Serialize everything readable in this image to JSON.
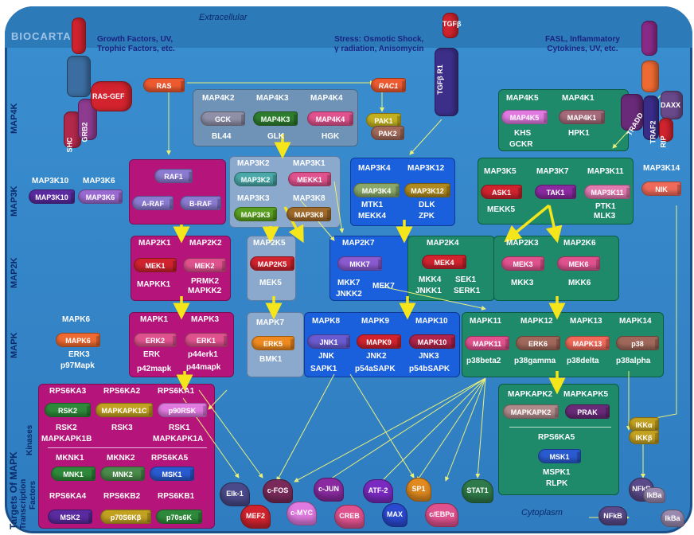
{
  "header": {
    "logo": "BIOCARTA",
    "extracellular": "Extracellular",
    "cytoplasm": "Cytoplasm",
    "stimuli": [
      {
        "line1": "Growth Factors, UV,",
        "line2": "Trophic Factors, etc."
      },
      {
        "line1": "Stress: Osmotic Shock,",
        "line2": "γ radiation, Anisomycin"
      },
      {
        "line1": "FASL, Inflammatory",
        "line2": "Cytokines, UV, etc."
      }
    ]
  },
  "side_labels": {
    "map4k": "MAP4K",
    "map3k": "MAP3K",
    "map2k": "MAP2K",
    "mapk": "MAPK",
    "targets_line1": "Targets Of MAPK",
    "targets_line2": "Transcription",
    "targets_line3": "Factors",
    "targets_kinases": "Kinases"
  },
  "receptors": {
    "shc": "SHC",
    "grb2": "GRB2",
    "rasgef": "RAS-GEF",
    "ras": "RAS",
    "rac1": "RAC1",
    "tgfb": "TGFβ",
    "tgfbr1": "TGFβ R1",
    "tradd": "TRADD",
    "traf2": "TRAF2",
    "daxx": "DAXX",
    "rip": "RIP"
  },
  "map4k_center": {
    "headers": [
      "MAP4K2",
      "MAP4K3",
      "MAP4K4"
    ],
    "pills": [
      "GCK",
      "MAP4K3",
      "MAP4K4"
    ],
    "aliases": [
      "BL44",
      "GLK",
      "HGK"
    ]
  },
  "pak": {
    "pak1": "PAK1",
    "pak2": "PAK2"
  },
  "map4k_right": {
    "headers": [
      "MAP4K5",
      "MAP4K1"
    ],
    "pills": [
      "MAP4K5",
      "MAP4K1"
    ],
    "aliases": [
      "KHS",
      "HPK1",
      "GCKR"
    ]
  },
  "map3k_left": {
    "headers": [
      "MAP3K10",
      "MAP3K6"
    ],
    "pills": [
      "MAP3K10",
      "MAP3K6"
    ]
  },
  "raf": {
    "raf1": "RAF1",
    "araf": "A-RAF",
    "braf": "B-RAF"
  },
  "map3k_grey": {
    "headers": [
      "MAP3K2",
      "MAP3K1",
      "MAP3K3",
      "MAP3K8"
    ],
    "pills": [
      "MAP3K2",
      "MEKK1",
      "MAP3K3",
      "MAP3K8"
    ]
  },
  "map3k_blue": {
    "headers": [
      "MAP3K4",
      "MAP3K12"
    ],
    "pills": [
      "MAP3K4",
      "MAP3K12"
    ],
    "aliases": [
      "MTK1",
      "DLK",
      "MEKK4",
      "ZPK"
    ]
  },
  "map3k_green": {
    "headers": [
      "MAP3K5",
      "MAP3K7",
      "MAP3K11"
    ],
    "pills": [
      "ASK1",
      "TAK1",
      "MAP3K11"
    ],
    "aliases": [
      "MEKK5",
      "PTK1",
      "MLK3"
    ]
  },
  "map3k14": {
    "header": "MAP3K14",
    "pill": "NIK"
  },
  "map2k_mag": {
    "headers": [
      "MAP2K1",
      "MAP2K2"
    ],
    "pills": [
      "MEK1",
      "MEK2"
    ],
    "aliases": [
      "MAPKK1",
      "PRMK2",
      "MAPKK2"
    ]
  },
  "map2k5": {
    "header": "MAP2K5",
    "pill": "MAP2K5",
    "alias": "MEK5"
  },
  "map2k_blue": {
    "header": "MAP2K7",
    "pill": "MKK7",
    "aliases": [
      "MKK7",
      "JNKK2",
      "MEK7"
    ]
  },
  "map2k4": {
    "header": "MAP2K4",
    "pill": "MEK4",
    "aliases": [
      "MKK4",
      "SEK1",
      "JNKK1",
      "SERK1"
    ]
  },
  "map2k_green": {
    "headers": [
      "MAP2K3",
      "MAP2K6"
    ],
    "pills": [
      "MEK3",
      "MEK6"
    ],
    "aliases": [
      "MKK3",
      "MKK6"
    ]
  },
  "mapk6": {
    "header": "MAPK6",
    "pill": "MAPK6",
    "aliases": [
      "ERK3",
      "p97Mapk"
    ]
  },
  "mapk_mag": {
    "headers": [
      "MAPK1",
      "MAPK3"
    ],
    "pills": [
      "ERK2",
      "ERK1"
    ],
    "aliases": [
      "ERK",
      "p44erk1",
      "p42mapk",
      "p44mapk"
    ]
  },
  "mapk7": {
    "header": "MAPK7",
    "pill": "ERK5",
    "alias": "BMK1"
  },
  "mapk_blue": {
    "headers": [
      "MAPK8",
      "MAPK9",
      "MAPK10"
    ],
    "pills": [
      "JNK1",
      "MAPK9",
      "MAPK10"
    ],
    "aliases": [
      "JNK",
      "JNK2",
      "JNK3",
      "SAPK1",
      "p54aSAPK",
      "p54bSAPK"
    ]
  },
  "mapk_green": {
    "headers": [
      "MAPK11",
      "MAPK12",
      "MAPK13",
      "MAPK14"
    ],
    "pills": [
      "MAPK11",
      "ERK6",
      "MAPK13",
      "p38"
    ],
    "aliases": [
      "p38beta2",
      "p38gamma",
      "p38delta",
      "p38alpha"
    ]
  },
  "targets_kinases": {
    "headers": [
      "RPS6KA3",
      "RPS6KA2",
      "RPS6KA1"
    ],
    "pills": [
      "RSK2",
      "MAPKAPK1C",
      "p90RSK"
    ],
    "aliases": [
      "RSK2",
      "RSK3",
      "RSK1",
      "MAPKAPK1B",
      "MAPKAPK1A"
    ],
    "mnk_headers": [
      "MKNK1",
      "MKNK2",
      "RPS6KA5"
    ],
    "mnk_pills": [
      "MNK1",
      "MNK2",
      "MSK1"
    ],
    "bottom_headers": [
      "RPS6KA4",
      "RPS6KB2",
      "RPS6KB1"
    ],
    "bottom_pills": [
      "MSK2",
      "p70S6Kβ",
      "p70s6K"
    ]
  },
  "mapkapk": {
    "headers": [
      "MAPKAPK2",
      "MAPKAPK5"
    ],
    "pills": [
      "MAPKAPK2",
      "PRAK"
    ],
    "msk_header": "RPS6KA5",
    "msk_pill": "MSK1",
    "msk_aliases": [
      "MSPK1",
      "RLPK"
    ]
  },
  "ikk": {
    "ikka": "IKKα",
    "ikkb": "IKKβ",
    "nfkb": "NFkB",
    "ikba": "IkBa",
    "nfkb2": "NFkB",
    "ikba2": "IkBa"
  },
  "transcription_factors": [
    "Elk-1",
    "c-FOS",
    "c-JUN",
    "ATF-2",
    "SP1",
    "STAT1",
    "MEF2",
    "c-MYC",
    "CREB",
    "MAX",
    "c/EBPα"
  ],
  "colors": {
    "magenta_box": "#b5157a",
    "blue_box": "#1a5fdc",
    "green_box": "#1f8a6a",
    "grey_box": "#6f93b6",
    "arrow": "#f5e51b",
    "wire": "#e8f07a"
  }
}
